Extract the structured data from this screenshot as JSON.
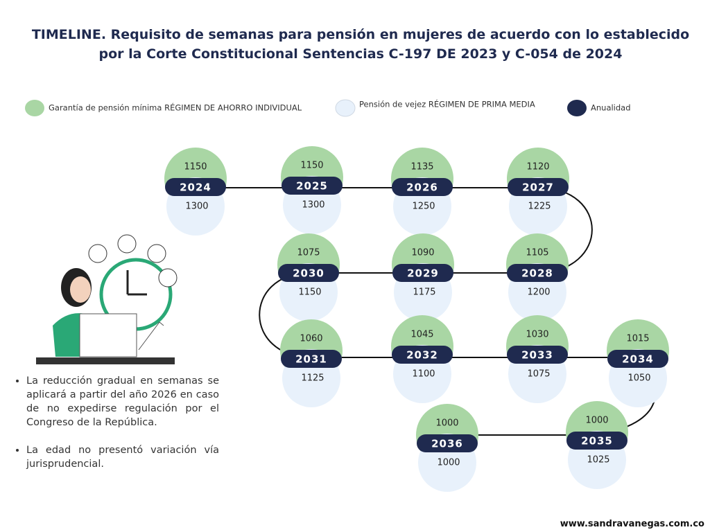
{
  "title": [
    "TIMELINE. Requisito de semanas para pensión en mujeres de acuerdo con lo establecido",
    "por la Corte Constitucional Sentencias C-197 DE 2023 y C-054 de 2024"
  ],
  "legend": [
    {
      "label": "Garantía de pensión mínima RÉGIMEN DE AHORRO INDIVIDUAL",
      "color": "#a9d6a4"
    },
    {
      "label": "Pensión de vejez RÉGIMEN DE PRIMA MEDIA",
      "color": "#e8f1fb"
    },
    {
      "label": "Anualidad",
      "color": "#1f2a4f"
    }
  ],
  "nodes": [
    {
      "year": 2024,
      "top": 1150,
      "bottom": 1300
    },
    {
      "year": 2025,
      "top": 1150,
      "bottom": 1300
    },
    {
      "year": 2026,
      "top": 1135,
      "bottom": 1250
    },
    {
      "year": 2027,
      "top": 1120,
      "bottom": 1225
    },
    {
      "year": 2028,
      "top": 1105,
      "bottom": 1200
    },
    {
      "year": 2029,
      "top": 1090,
      "bottom": 1175
    },
    {
      "year": 2030,
      "top": 1075,
      "bottom": 1150
    },
    {
      "year": 2031,
      "top": 1060,
      "bottom": 1125
    },
    {
      "year": 2032,
      "top": 1045,
      "bottom": 1100
    },
    {
      "year": 2033,
      "top": 1030,
      "bottom": 1075
    },
    {
      "year": 2034,
      "top": 1015,
      "bottom": 1050
    },
    {
      "year": 2035,
      "top": 1000,
      "bottom": 1025
    },
    {
      "year": 2036,
      "top": 1000,
      "bottom": 1000
    }
  ],
  "notes": [
    "La reducción gradual en semanas se aplicará a partir del año 2026 en caso de no expedirse regulación por el Congreso de la República.",
    "La edad no presentó variación vía jurisprudencial."
  ],
  "footer": "www.sandravanegas.com.co"
}
